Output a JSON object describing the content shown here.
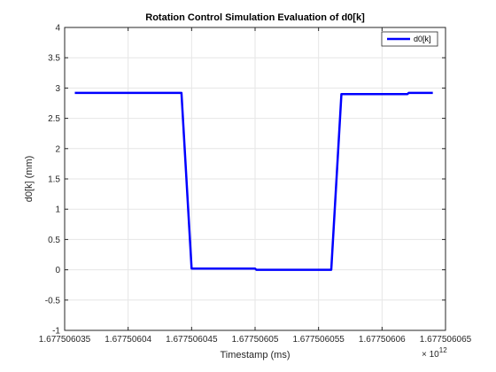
{
  "chart_data": {
    "type": "line",
    "title": "Rotation Control Simulation Evaluation of d0[k]",
    "xlabel": "Timestamp (ms)",
    "ylabel": "d0[k] (mm)",
    "x_exponent_label": "× 10",
    "x_exponent_power": "12",
    "xlim": [
      1677506035,
      1677506065
    ],
    "ylim": [
      -1,
      4
    ],
    "x_ticks": [
      1677506035,
      1677506040,
      1677506045,
      1677506050,
      1677506055,
      1677506060,
      1677506065
    ],
    "x_tick_labels": [
      "1.677506035",
      "1.67750604",
      "1.677506045",
      "1.67750605",
      "1.677506055",
      "1.67750606",
      "1.677506065"
    ],
    "y_ticks": [
      -1,
      -0.5,
      0,
      0.5,
      1,
      1.5,
      2,
      2.5,
      3,
      3.5,
      4
    ],
    "y_tick_labels": [
      "-1",
      "-0.5",
      "0",
      "0.5",
      "1",
      "1.5",
      "2",
      "2.5",
      "3",
      "3.5",
      "4"
    ],
    "grid": true,
    "legend_position": "top-right",
    "series": [
      {
        "name": "d0[k]",
        "color": "#0000ff",
        "x": [
          1677506035.8,
          1677506044.2,
          1677506045.0,
          1677506050.0,
          1677506050.1,
          1677506056.0,
          1677506056.8,
          1677506062.0,
          1677506062.1,
          1677506064.0
        ],
        "y": [
          2.92,
          2.92,
          0.02,
          0.02,
          0.0,
          0.0,
          2.9,
          2.9,
          2.92,
          2.92
        ]
      }
    ]
  }
}
